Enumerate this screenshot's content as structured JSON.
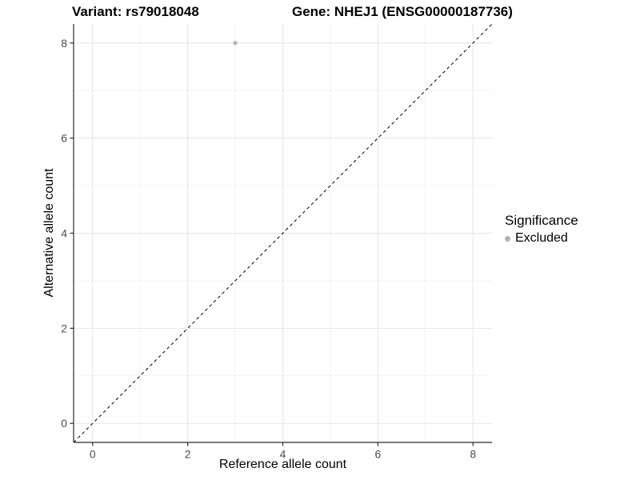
{
  "chart_data": {
    "type": "scatter",
    "title_left": "Variant: rs79018048",
    "title_right": "Gene: NHEJ1 (ENSG00000187736)",
    "xlabel": "Reference allele count",
    "ylabel": "Alternative allele count",
    "xlim": [
      -0.4,
      8.4
    ],
    "ylim": [
      -0.4,
      8.4
    ],
    "x_ticks": [
      0,
      2,
      4,
      6,
      8
    ],
    "y_ticks": [
      0,
      2,
      4,
      6,
      8
    ],
    "x_minor": [
      1,
      3,
      5,
      7
    ],
    "y_minor": [
      1,
      3,
      5,
      7
    ],
    "grid": true,
    "points": [
      {
        "x": 3,
        "y": 8,
        "series": "Excluded"
      }
    ],
    "reference_line": {
      "type": "abline",
      "slope": 1,
      "intercept": 0,
      "style": "dashed",
      "color": "#000000"
    },
    "legend": {
      "title": "Significance",
      "position": "right",
      "items": [
        {
          "label": "Excluded",
          "color": "#b3b3b3"
        }
      ]
    },
    "colors": {
      "point": "#b3b3b3",
      "grid_major": "#e5e5e5",
      "grid_minor": "#f2f2f2",
      "axis": "#2b2b2b",
      "tick_label": "#4d4d4d",
      "background": "#ffffff"
    }
  }
}
